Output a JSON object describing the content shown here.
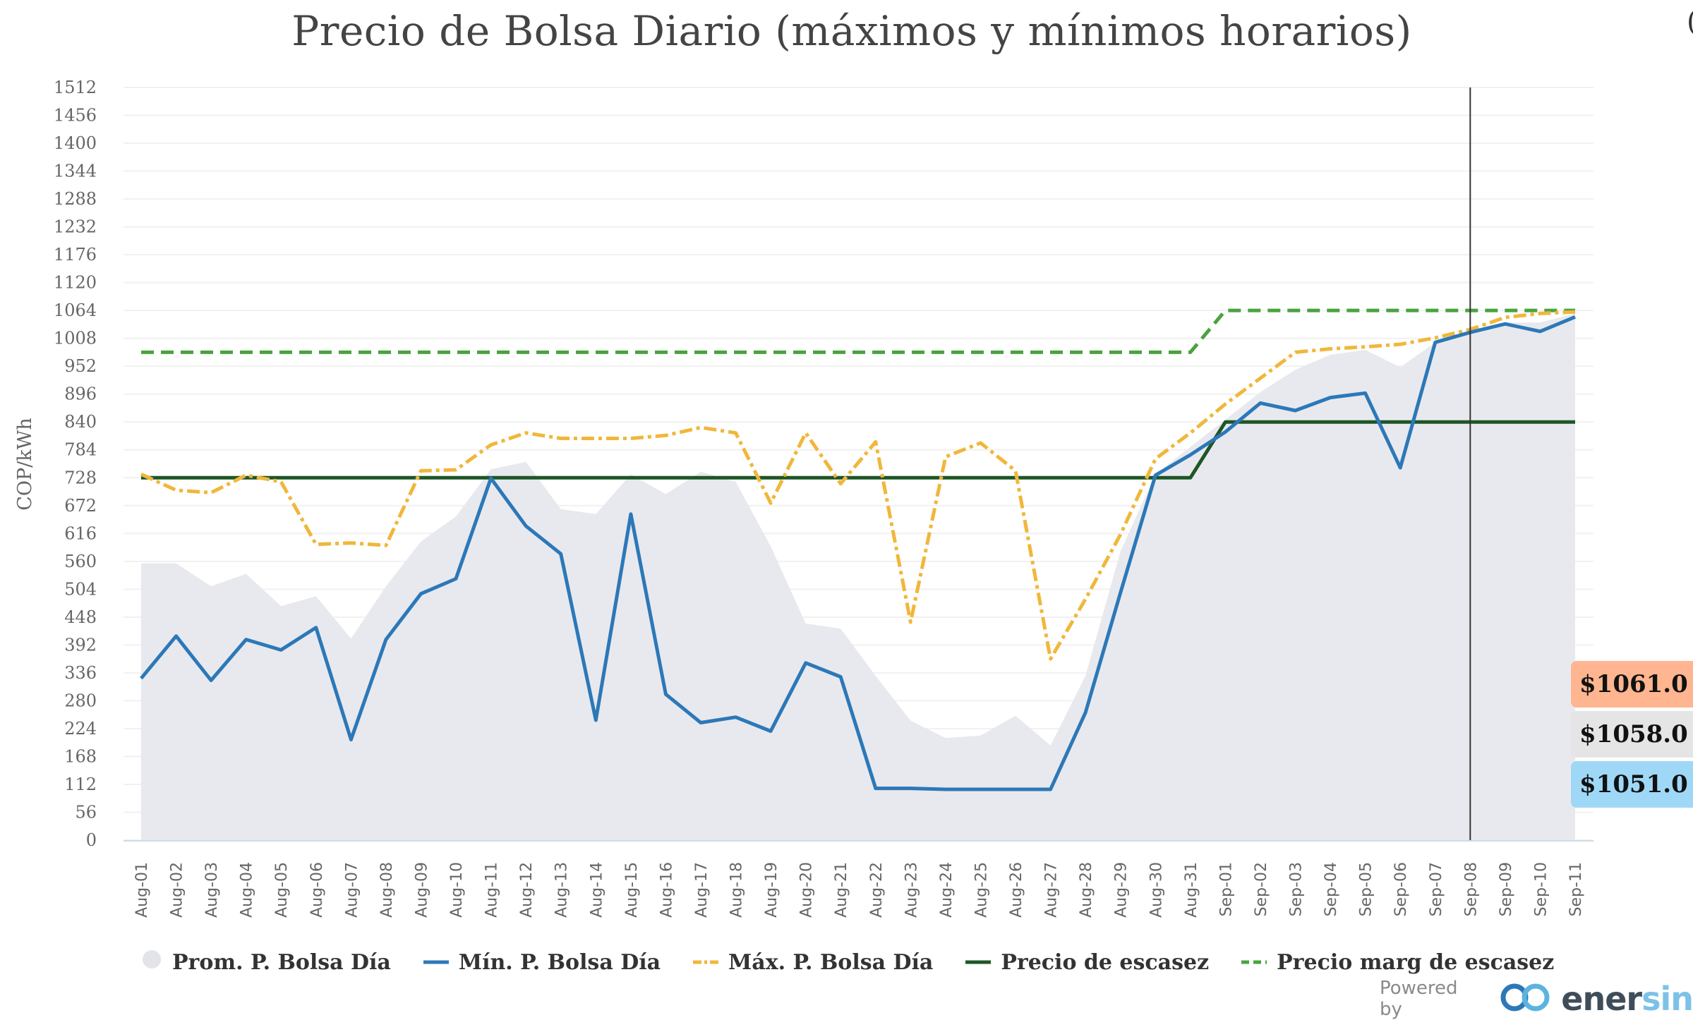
{
  "title": "Precio de Bolsa Diario (máximos y mínimos horarios)",
  "cut_glyph": "(",
  "y_axis": {
    "label": "COP/kWh",
    "ticks": [
      "0",
      "56",
      "112",
      "168",
      "224",
      "280",
      "336",
      "392",
      "448",
      "504",
      "560",
      "616",
      "672",
      "728",
      "784",
      "840",
      "896",
      "952",
      "1008",
      "1064",
      "1120",
      "1176",
      "1232",
      "1288",
      "1344",
      "1400",
      "1456",
      "1512"
    ]
  },
  "legend": {
    "prom": "Prom. P. Bolsa Día",
    "min": "Mín. P. Bolsa Día",
    "max": "Máx. P. Bolsa Día",
    "escasez": "Precio de escasez",
    "marg": "Precio marg de escasez"
  },
  "price_tags": {
    "max": "$1061.0",
    "prom": "$1058.0",
    "min": "$1051.0"
  },
  "powered_by": {
    "label": "Powered by",
    "brand_dark": "ener",
    "brand_light": "sin"
  },
  "colors": {
    "prom": "#e8e9ee",
    "min": "#2c78b8",
    "max": "#f0b73b",
    "escasez": "#1e5626",
    "marg": "#4aa33f",
    "tag_max": "#ffb58f",
    "tag_prom": "#e5e5e5",
    "tag_min": "#9fd8f7"
  },
  "crosshair_index": 38,
  "chart_data": {
    "type": "line",
    "title": "Precio de Bolsa Diario (máximos y mínimos horarios)",
    "xlabel": "",
    "ylabel": "COP/kWh",
    "ylim": [
      0,
      1512
    ],
    "grid": true,
    "legend_position": "bottom",
    "categories": [
      "Aug-01",
      "Aug-02",
      "Aug-03",
      "Aug-04",
      "Aug-05",
      "Aug-06",
      "Aug-07",
      "Aug-08",
      "Aug-09",
      "Aug-10",
      "Aug-11",
      "Aug-12",
      "Aug-13",
      "Aug-14",
      "Aug-15",
      "Aug-16",
      "Aug-17",
      "Aug-18",
      "Aug-19",
      "Aug-20",
      "Aug-21",
      "Aug-22",
      "Aug-23",
      "Aug-24",
      "Aug-25",
      "Aug-26",
      "Aug-27",
      "Aug-28",
      "Aug-29",
      "Aug-30",
      "Aug-31",
      "Sep-01",
      "Sep-02",
      "Sep-03",
      "Sep-04",
      "Sep-05",
      "Sep-06",
      "Sep-07",
      "Sep-08",
      "Sep-09",
      "Sep-10",
      "Sep-11"
    ],
    "series": [
      {
        "name": "Prom. P. Bolsa Día",
        "type": "area",
        "values": [
          556,
          556,
          510,
          535,
          470,
          490,
          405,
          510,
          600,
          650,
          745,
          760,
          665,
          655,
          735,
          695,
          740,
          720,
          590,
          435,
          425,
          330,
          240,
          205,
          210,
          250,
          190,
          330,
          580,
          735,
          790,
          845,
          900,
          945,
          975,
          985,
          950,
          1000,
          1020,
          1040,
          1040,
          1058
        ]
      },
      {
        "name": "Mín. P. Bolsa Día",
        "type": "line",
        "values": [
          325,
          410,
          321,
          403,
          382,
          427,
          202,
          403,
          495,
          525,
          727,
          631,
          575,
          241,
          655,
          293,
          236,
          247,
          219,
          356,
          328,
          104,
          104,
          102,
          102,
          102,
          102,
          256,
          497,
          733,
          774,
          820,
          878,
          863,
          889,
          898,
          748,
          1000,
          1020,
          1037,
          1022,
          1051
        ]
      },
      {
        "name": "Máx. P. Bolsa Día",
        "type": "line",
        "values": [
          735,
          703,
          698,
          733,
          720,
          594,
          597,
          592,
          742,
          744,
          794,
          818,
          807,
          807,
          807,
          813,
          829,
          818,
          677,
          818,
          716,
          800,
          438,
          770,
          798,
          742,
          364,
          484,
          614,
          766,
          818,
          876,
          928,
          980,
          987,
          991,
          996,
          1009,
          1026,
          1050,
          1058,
          1061
        ]
      },
      {
        "name": "Precio de escasez",
        "type": "line",
        "values": [
          728,
          728,
          728,
          728,
          728,
          728,
          728,
          728,
          728,
          728,
          728,
          728,
          728,
          728,
          728,
          728,
          728,
          728,
          728,
          728,
          728,
          728,
          728,
          728,
          728,
          728,
          728,
          728,
          728,
          728,
          728,
          840,
          840,
          840,
          840,
          840,
          840,
          840,
          840,
          840,
          840,
          840
        ]
      },
      {
        "name": "Precio marg de escasez",
        "type": "line",
        "values": [
          980,
          980,
          980,
          980,
          980,
          980,
          980,
          980,
          980,
          980,
          980,
          980,
          980,
          980,
          980,
          980,
          980,
          980,
          980,
          980,
          980,
          980,
          980,
          980,
          980,
          980,
          980,
          980,
          980,
          980,
          980,
          1064,
          1064,
          1064,
          1064,
          1064,
          1064,
          1064,
          1064,
          1064,
          1064,
          1064
        ]
      }
    ]
  }
}
